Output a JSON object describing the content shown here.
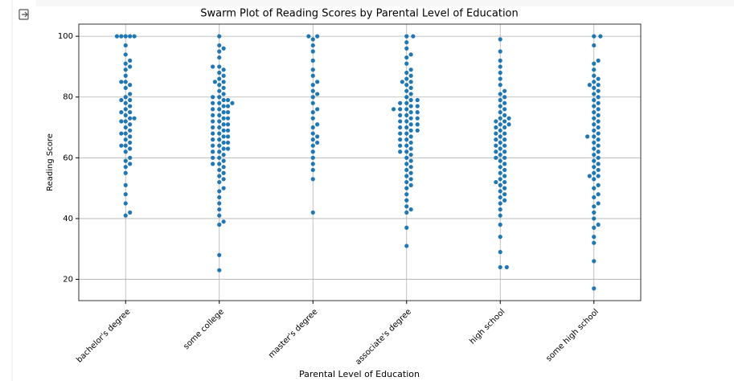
{
  "chart_data": {
    "type": "swarm",
    "title": "Swarm Plot of Reading Scores by Parental Level of Education",
    "xlabel": "Parental Level of Education",
    "ylabel": "Reading Score",
    "categories": [
      "bachelor's degree",
      "some college",
      "master's degree",
      "associate's degree",
      "high school",
      "some high school"
    ],
    "color": "#1f77b4",
    "grid": true,
    "ylim": [
      13,
      104
    ],
    "yticks": [
      20,
      40,
      60,
      80,
      100
    ],
    "values": [
      [
        100,
        100,
        100,
        100,
        100,
        97,
        94,
        92,
        91,
        90,
        89,
        87,
        85,
        85,
        84,
        83,
        81,
        80,
        79,
        79,
        78,
        77,
        76,
        75,
        75,
        74,
        73,
        73,
        72,
        72,
        71,
        70,
        69,
        68,
        68,
        67,
        66,
        65,
        64,
        64,
        63,
        62,
        60,
        59,
        58,
        57,
        55,
        51,
        48,
        45,
        42,
        41
      ],
      [
        100,
        97,
        96,
        95,
        93,
        90,
        90,
        89,
        88,
        87,
        86,
        85,
        85,
        84,
        83,
        82,
        81,
        80,
        80,
        79,
        79,
        78,
        78,
        78,
        77,
        77,
        76,
        76,
        75,
        75,
        74,
        74,
        73,
        73,
        72,
        72,
        71,
        71,
        70,
        70,
        69,
        69,
        68,
        68,
        67,
        67,
        66,
        66,
        65,
        65,
        64,
        64,
        63,
        63,
        62,
        62,
        61,
        60,
        60,
        59,
        58,
        58,
        57,
        56,
        55,
        54,
        53,
        52,
        50,
        49,
        47,
        45,
        43,
        41,
        39,
        38,
        28,
        23
      ],
      [
        100,
        100,
        99,
        97,
        95,
        92,
        89,
        87,
        85,
        84,
        82,
        81,
        80,
        78,
        76,
        75,
        73,
        71,
        70,
        68,
        67,
        66,
        65,
        64,
        62,
        60,
        58,
        56,
        53,
        42
      ],
      [
        100,
        100,
        98,
        96,
        94,
        93,
        91,
        89,
        88,
        87,
        86,
        85,
        85,
        84,
        83,
        82,
        81,
        80,
        79,
        79,
        78,
        78,
        77,
        77,
        76,
        76,
        76,
        75,
        75,
        74,
        74,
        73,
        73,
        72,
        72,
        71,
        71,
        70,
        70,
        69,
        69,
        68,
        68,
        67,
        66,
        66,
        65,
        64,
        64,
        63,
        62,
        62,
        61,
        60,
        59,
        58,
        57,
        56,
        55,
        54,
        53,
        52,
        51,
        50,
        48,
        46,
        44,
        43,
        42,
        37,
        31
      ],
      [
        99,
        95,
        92,
        90,
        88,
        86,
        84,
        82,
        81,
        80,
        79,
        78,
        77,
        76,
        75,
        74,
        73,
        73,
        72,
        72,
        71,
        71,
        70,
        70,
        69,
        68,
        68,
        67,
        66,
        66,
        65,
        64,
        64,
        63,
        62,
        62,
        61,
        60,
        60,
        59,
        58,
        57,
        56,
        55,
        54,
        53,
        52,
        52,
        51,
        50,
        49,
        48,
        47,
        46,
        45,
        43,
        41,
        38,
        34,
        29,
        24,
        24
      ],
      [
        100,
        100,
        97,
        92,
        91,
        89,
        87,
        86,
        85,
        84,
        84,
        83,
        82,
        81,
        80,
        79,
        78,
        77,
        76,
        75,
        74,
        73,
        72,
        71,
        70,
        69,
        68,
        67,
        67,
        66,
        65,
        64,
        63,
        62,
        61,
        60,
        59,
        58,
        57,
        56,
        55,
        54,
        54,
        53,
        51,
        50,
        48,
        47,
        45,
        44,
        42,
        40,
        38,
        37,
        34,
        32,
        26,
        17
      ]
    ]
  }
}
